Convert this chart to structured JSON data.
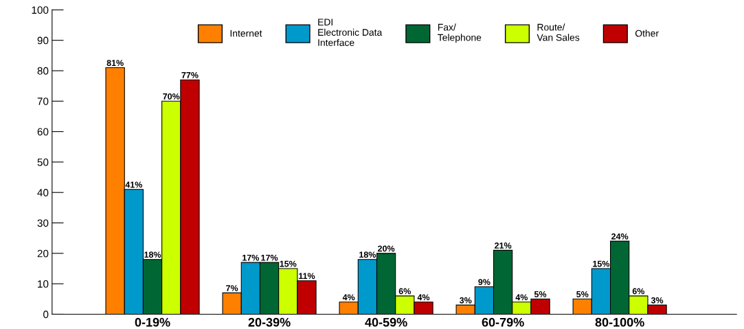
{
  "chart_data": {
    "type": "bar",
    "categories": [
      "0-19%",
      "20-39%",
      "40-59%",
      "60-79%",
      "80-100%"
    ],
    "series": [
      {
        "name": "Internet",
        "color": "#ff8000",
        "values": [
          81,
          7,
          4,
          3,
          5
        ],
        "value_labels": [
          "81%",
          "7%",
          "4%",
          "3%",
          "5%"
        ]
      },
      {
        "name": "EDI\nElectronic Data\nInterface",
        "color": "#0099cc",
        "values": [
          41,
          17,
          18,
          9,
          15
        ],
        "value_labels": [
          "41%",
          "17%",
          "18%",
          "9%",
          "15%"
        ]
      },
      {
        "name": "Fax/\nTelephone",
        "color": "#006633",
        "values": [
          18,
          17,
          20,
          21,
          24
        ],
        "value_labels": [
          "18%",
          "17%",
          "20%",
          "21%",
          "24%"
        ]
      },
      {
        "name": "Route/\nVan Sales",
        "color": "#ccff00",
        "values": [
          70,
          15,
          6,
          4,
          6
        ],
        "value_labels": [
          "70%",
          "15%",
          "6%",
          "4%",
          "6%"
        ]
      },
      {
        "name": "Other",
        "color": "#c00000",
        "values": [
          77,
          11,
          4,
          5,
          3
        ],
        "value_labels": [
          "77%",
          "11%",
          "4%",
          "5%",
          "3%"
        ]
      }
    ],
    "ylim": [
      0,
      100
    ],
    "yticks": [
      0,
      10,
      20,
      30,
      40,
      50,
      60,
      70,
      80,
      90,
      100
    ],
    "grid": false,
    "legend": "top"
  }
}
